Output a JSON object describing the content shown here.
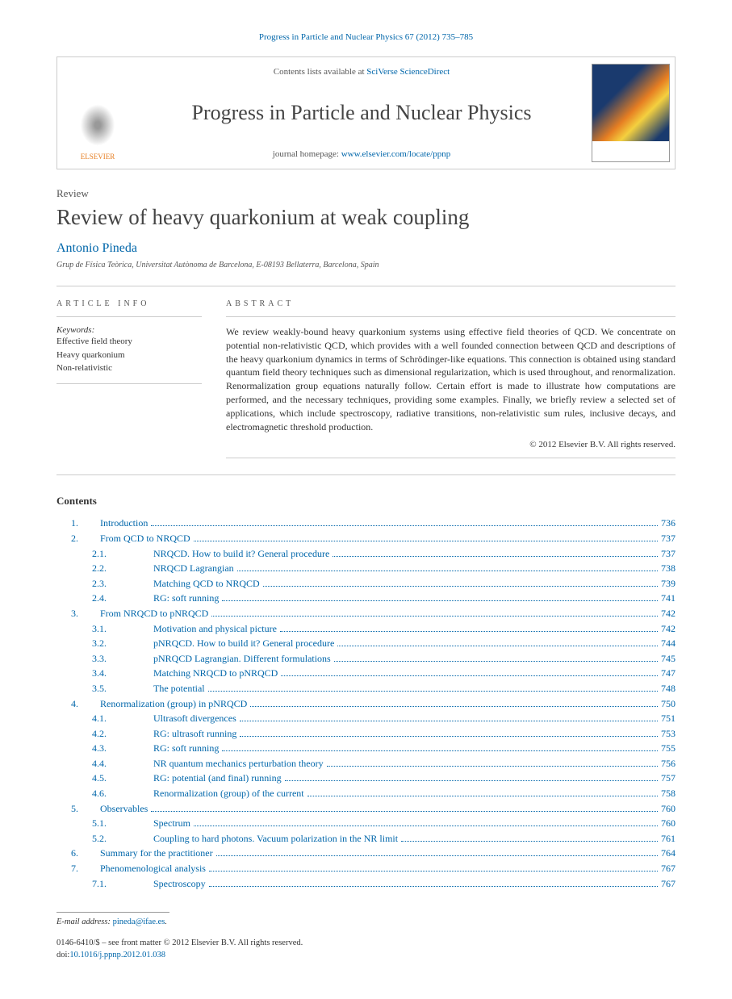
{
  "citation": "Progress in Particle and Nuclear Physics 67 (2012) 735–785",
  "masthead": {
    "publisher": "ELSEVIER",
    "contents_prefix": "Contents lists available at ",
    "contents_link": "SciVerse ScienceDirect",
    "journal": "Progress in Particle and Nuclear Physics",
    "homepage_prefix": "journal homepage: ",
    "homepage_link": "www.elsevier.com/locate/ppnp"
  },
  "article": {
    "type": "Review",
    "title": "Review of heavy quarkonium at weak coupling",
    "author": "Antonio Pineda",
    "affiliation": "Grup de Física Teòrica, Universitat Autònoma de Barcelona, E-08193 Bellaterra, Barcelona, Spain"
  },
  "info": {
    "heading": "ARTICLE INFO",
    "keywords_label": "Keywords:",
    "keywords": [
      "Effective field theory",
      "Heavy quarkonium",
      "Non-relativistic"
    ]
  },
  "abstract": {
    "heading": "ABSTRACT",
    "text": "We review weakly-bound heavy quarkonium systems using effective field theories of QCD. We concentrate on potential non-relativistic QCD, which provides with a well founded connection between QCD and descriptions of the heavy quarkonium dynamics in terms of Schrödinger-like equations. This connection is obtained using standard quantum field theory techniques such as dimensional regularization, which is used throughout, and renormalization. Renormalization group equations naturally follow. Certain effort is made to illustrate how computations are performed, and the necessary techniques, providing some examples. Finally, we briefly review a selected set of applications, which include spectroscopy, radiative transitions, non-relativistic sum rules, inclusive decays, and electromagnetic threshold production.",
    "copyright": "© 2012 Elsevier B.V. All rights reserved."
  },
  "contents": {
    "heading": "Contents",
    "items": [
      {
        "level": 1,
        "num": "1.",
        "title": "Introduction",
        "page": "736"
      },
      {
        "level": 1,
        "num": "2.",
        "title": "From QCD to NRQCD",
        "page": "737"
      },
      {
        "level": 2,
        "num": "2.1.",
        "title": "NRQCD. How to build it? General procedure",
        "page": "737"
      },
      {
        "level": 2,
        "num": "2.2.",
        "title": "NRQCD Lagrangian",
        "page": "738"
      },
      {
        "level": 2,
        "num": "2.3.",
        "title": "Matching QCD to NRQCD",
        "page": "739"
      },
      {
        "level": 2,
        "num": "2.4.",
        "title": "RG: soft running",
        "page": "741"
      },
      {
        "level": 1,
        "num": "3.",
        "title": "From NRQCD to pNRQCD",
        "page": "742"
      },
      {
        "level": 2,
        "num": "3.1.",
        "title": "Motivation and physical picture",
        "page": "742"
      },
      {
        "level": 2,
        "num": "3.2.",
        "title": "pNRQCD. How to build it? General procedure",
        "page": "744"
      },
      {
        "level": 2,
        "num": "3.3.",
        "title": "pNRQCD Lagrangian. Different formulations",
        "page": "745"
      },
      {
        "level": 2,
        "num": "3.4.",
        "title": "Matching NRQCD to pNRQCD",
        "page": "747"
      },
      {
        "level": 2,
        "num": "3.5.",
        "title": "The potential",
        "page": "748"
      },
      {
        "level": 1,
        "num": "4.",
        "title": "Renormalization (group) in pNRQCD",
        "page": "750"
      },
      {
        "level": 2,
        "num": "4.1.",
        "title": "Ultrasoft divergences",
        "page": "751"
      },
      {
        "level": 2,
        "num": "4.2.",
        "title": "RG: ultrasoft running",
        "page": "753"
      },
      {
        "level": 2,
        "num": "4.3.",
        "title": "RG: soft running",
        "page": "755"
      },
      {
        "level": 2,
        "num": "4.4.",
        "title": "NR quantum mechanics perturbation theory",
        "page": "756"
      },
      {
        "level": 2,
        "num": "4.5.",
        "title": "RG: potential (and final) running",
        "page": "757"
      },
      {
        "level": 2,
        "num": "4.6.",
        "title": "Renormalization (group) of the current",
        "page": "758"
      },
      {
        "level": 1,
        "num": "5.",
        "title": "Observables",
        "page": "760"
      },
      {
        "level": 2,
        "num": "5.1.",
        "title": "Spectrum",
        "page": "760"
      },
      {
        "level": 2,
        "num": "5.2.",
        "title": "Coupling to hard photons. Vacuum polarization in the NR limit",
        "page": "761"
      },
      {
        "level": 1,
        "num": "6.",
        "title": "Summary for the practitioner",
        "page": "764"
      },
      {
        "level": 1,
        "num": "7.",
        "title": "Phenomenological analysis",
        "page": "767"
      },
      {
        "level": 2,
        "num": "7.1.",
        "title": "Spectroscopy",
        "page": "767"
      }
    ]
  },
  "footer": {
    "email_label": "E-mail address:",
    "email": "pineda@ifae.es",
    "issn_line": "0146-6410/$ – see front matter © 2012 Elsevier B.V. All rights reserved.",
    "doi_label": "doi:",
    "doi": "10.1016/j.ppnp.2012.01.038"
  }
}
